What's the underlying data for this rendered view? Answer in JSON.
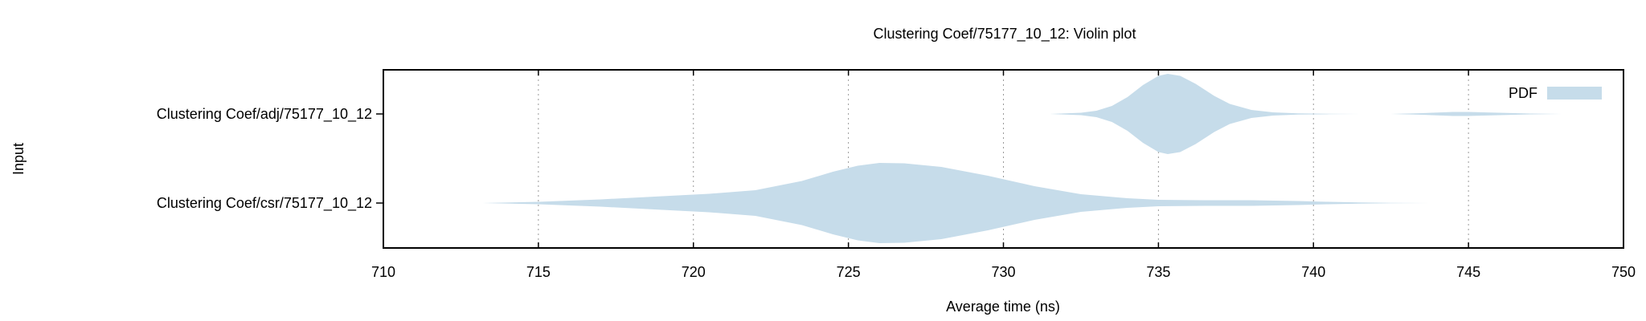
{
  "chart_data": {
    "type": "violin",
    "title": "Clustering Coef/75177_10_12: Violin plot",
    "xlabel": "Average time (ns)",
    "ylabel": "Input",
    "xlim": [
      710,
      750
    ],
    "xticks": [
      710,
      715,
      720,
      725,
      730,
      735,
      740,
      745,
      750
    ],
    "grid": true,
    "legend": {
      "label": "PDF",
      "placement": "top-right"
    },
    "fill_color": "#c6dcea",
    "categories": [
      "Clustering Coef/adj/75177_10_12",
      "Clustering Coef/csr/75177_10_12"
    ],
    "series": [
      {
        "name": "Clustering Coef/adj/75177_10_12",
        "density": [
          [
            731.5,
            0.0
          ],
          [
            732.5,
            0.03
          ],
          [
            733.0,
            0.08
          ],
          [
            733.5,
            0.2
          ],
          [
            734.0,
            0.42
          ],
          [
            734.5,
            0.72
          ],
          [
            735.0,
            0.95
          ],
          [
            735.3,
            1.0
          ],
          [
            735.7,
            0.95
          ],
          [
            736.2,
            0.75
          ],
          [
            736.8,
            0.45
          ],
          [
            737.3,
            0.25
          ],
          [
            738.0,
            0.1
          ],
          [
            738.7,
            0.04
          ],
          [
            739.5,
            0.015
          ],
          [
            740.5,
            0.005
          ],
          [
            741.5,
            0.0
          ],
          [
            742.5,
            0.0
          ],
          [
            743.5,
            0.02
          ],
          [
            744.5,
            0.05
          ],
          [
            745.0,
            0.05
          ],
          [
            746.0,
            0.03
          ],
          [
            747.0,
            0.01
          ],
          [
            748.0,
            0.0
          ]
        ]
      },
      {
        "name": "Clustering Coef/csr/75177_10_12",
        "density": [
          [
            713.2,
            0.0
          ],
          [
            715.0,
            0.03
          ],
          [
            717.0,
            0.09
          ],
          [
            719.0,
            0.17
          ],
          [
            720.5,
            0.23
          ],
          [
            722.0,
            0.32
          ],
          [
            723.5,
            0.55
          ],
          [
            724.5,
            0.78
          ],
          [
            725.3,
            0.93
          ],
          [
            726.0,
            1.0
          ],
          [
            726.8,
            0.99
          ],
          [
            728.0,
            0.9
          ],
          [
            729.5,
            0.68
          ],
          [
            731.0,
            0.42
          ],
          [
            732.5,
            0.22
          ],
          [
            734.0,
            0.12
          ],
          [
            735.0,
            0.08
          ],
          [
            736.5,
            0.07
          ],
          [
            738.0,
            0.07
          ],
          [
            739.5,
            0.05
          ],
          [
            740.5,
            0.03
          ],
          [
            741.5,
            0.015
          ],
          [
            742.5,
            0.005
          ],
          [
            744.0,
            0.0
          ]
        ]
      }
    ]
  }
}
